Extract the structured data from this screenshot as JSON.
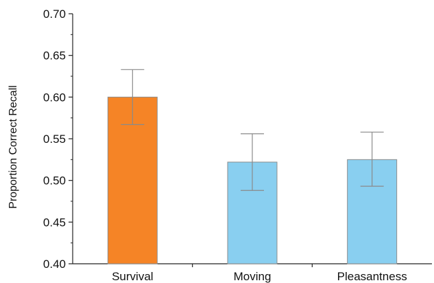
{
  "chart_data": {
    "type": "bar",
    "title": "",
    "xlabel": "",
    "ylabel": "Proportion Correct Recall",
    "categories": [
      "Survival",
      "Moving",
      "Pleasantness"
    ],
    "values": [
      0.6,
      0.522,
      0.525
    ],
    "error_low": [
      0.567,
      0.488,
      0.493
    ],
    "error_high": [
      0.633,
      0.556,
      0.558
    ],
    "ylim": [
      0.4,
      0.7
    ],
    "yticks": [
      0.4,
      0.45,
      0.5,
      0.55,
      0.6,
      0.65,
      0.7
    ],
    "ytick_labels": [
      "0.40",
      "0.45",
      "0.50",
      "0.55",
      "0.60",
      "0.65",
      "0.70"
    ],
    "grid": false,
    "legend": "none",
    "bar_colors": [
      "#f58426",
      "#89cff0",
      "#89cff0"
    ],
    "bar_edge_color": "#8c8c8c",
    "error_bar_color": "#8a8a8a"
  }
}
